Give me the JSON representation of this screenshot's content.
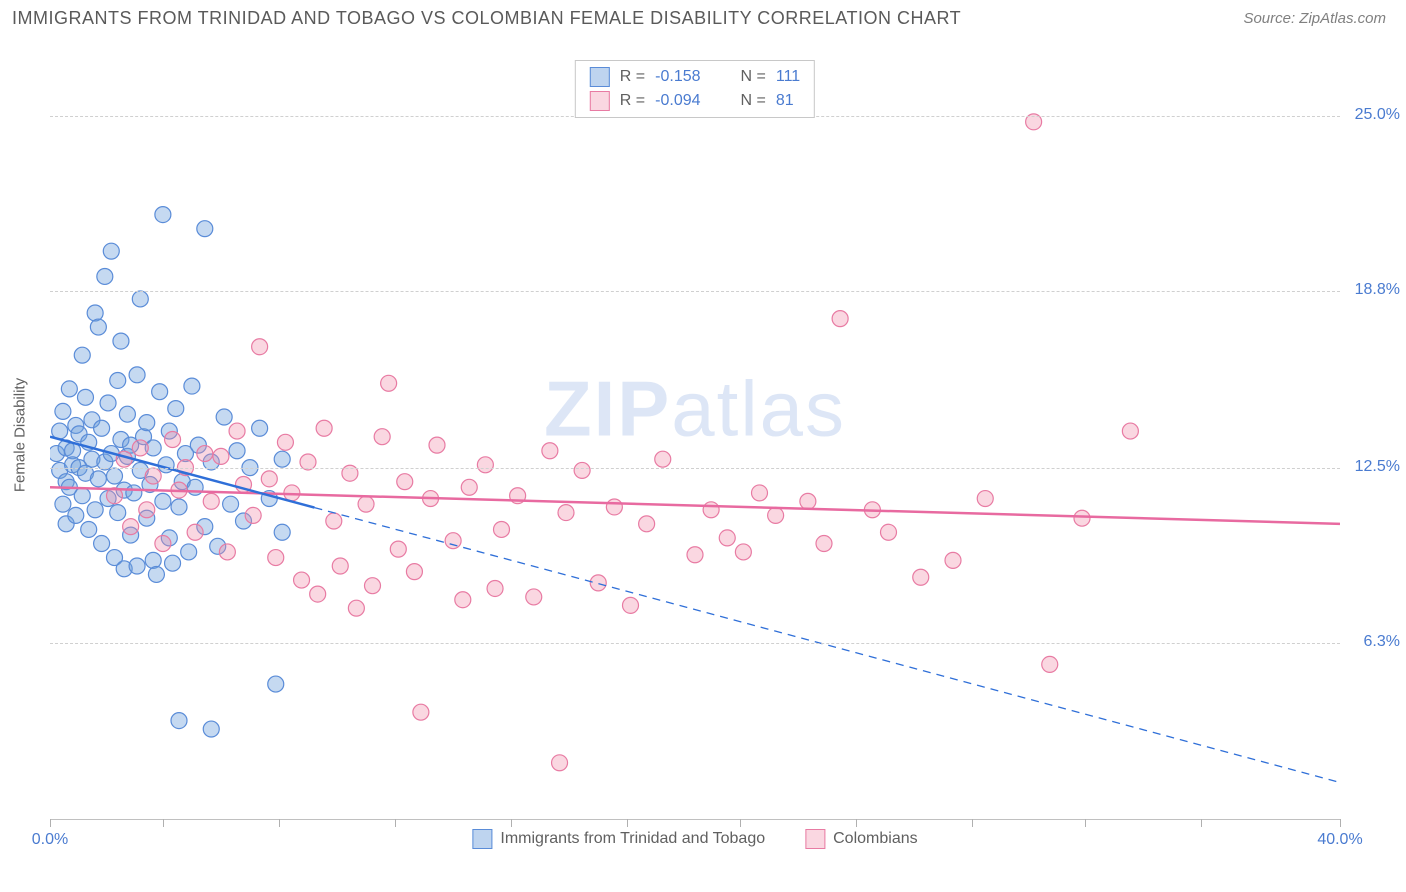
{
  "title": "IMMIGRANTS FROM TRINIDAD AND TOBAGO VS COLOMBIAN FEMALE DISABILITY CORRELATION CHART",
  "source": "Source: ZipAtlas.com",
  "y_axis_label": "Female Disability",
  "watermark_bold": "ZIP",
  "watermark_light": "atlas",
  "chart": {
    "type": "scatter",
    "xlim": [
      0,
      40
    ],
    "ylim": [
      0,
      27
    ],
    "y_ticks": [
      {
        "value": 6.3,
        "label": "6.3%"
      },
      {
        "value": 12.5,
        "label": "12.5%"
      },
      {
        "value": 18.8,
        "label": "18.8%"
      },
      {
        "value": 25.0,
        "label": "25.0%"
      }
    ],
    "x_ticks": [
      0,
      3.5,
      7.1,
      10.7,
      14.3,
      17.9,
      21.4,
      25,
      28.6,
      32.1,
      35.7,
      40
    ],
    "x_tick_labels": [
      {
        "value": 0,
        "label": "0.0%"
      },
      {
        "value": 40,
        "label": "40.0%"
      }
    ],
    "grid_color": "#d0d0d0",
    "background_color": "#ffffff",
    "series": [
      {
        "name": "Immigrants from Trinidad and Tobago",
        "R": "-0.158",
        "N": "111",
        "marker_fill": "rgba(110,160,220,0.40)",
        "marker_stroke": "#5a8cd8",
        "marker_radius": 8,
        "line_color": "#2f6fd8",
        "line_width": 2.5,
        "line_solid_end_x": 8.2,
        "line_start": {
          "x": 0,
          "y": 13.6
        },
        "line_end": {
          "x": 40,
          "y": 1.3
        },
        "points": [
          {
            "x": 0.2,
            "y": 13.0
          },
          {
            "x": 0.3,
            "y": 12.4
          },
          {
            "x": 0.3,
            "y": 13.8
          },
          {
            "x": 0.4,
            "y": 11.2
          },
          {
            "x": 0.4,
            "y": 14.5
          },
          {
            "x": 0.5,
            "y": 12.0
          },
          {
            "x": 0.5,
            "y": 13.2
          },
          {
            "x": 0.5,
            "y": 10.5
          },
          {
            "x": 0.6,
            "y": 11.8
          },
          {
            "x": 0.6,
            "y": 15.3
          },
          {
            "x": 0.7,
            "y": 13.1
          },
          {
            "x": 0.7,
            "y": 12.6
          },
          {
            "x": 0.8,
            "y": 14.0
          },
          {
            "x": 0.8,
            "y": 10.8
          },
          {
            "x": 0.9,
            "y": 12.5
          },
          {
            "x": 0.9,
            "y": 13.7
          },
          {
            "x": 1.0,
            "y": 11.5
          },
          {
            "x": 1.0,
            "y": 16.5
          },
          {
            "x": 1.1,
            "y": 12.3
          },
          {
            "x": 1.1,
            "y": 15.0
          },
          {
            "x": 1.2,
            "y": 13.4
          },
          {
            "x": 1.2,
            "y": 10.3
          },
          {
            "x": 1.3,
            "y": 12.8
          },
          {
            "x": 1.3,
            "y": 14.2
          },
          {
            "x": 1.4,
            "y": 11.0
          },
          {
            "x": 1.4,
            "y": 18.0
          },
          {
            "x": 1.5,
            "y": 12.1
          },
          {
            "x": 1.5,
            "y": 17.5
          },
          {
            "x": 1.6,
            "y": 13.9
          },
          {
            "x": 1.6,
            "y": 9.8
          },
          {
            "x": 1.7,
            "y": 12.7
          },
          {
            "x": 1.7,
            "y": 19.3
          },
          {
            "x": 1.8,
            "y": 11.4
          },
          {
            "x": 1.8,
            "y": 14.8
          },
          {
            "x": 1.9,
            "y": 13.0
          },
          {
            "x": 1.9,
            "y": 20.2
          },
          {
            "x": 2.0,
            "y": 12.2
          },
          {
            "x": 2.0,
            "y": 9.3
          },
          {
            "x": 2.1,
            "y": 15.6
          },
          {
            "x": 2.1,
            "y": 10.9
          },
          {
            "x": 2.2,
            "y": 13.5
          },
          {
            "x": 2.2,
            "y": 17.0
          },
          {
            "x": 2.3,
            "y": 11.7
          },
          {
            "x": 2.3,
            "y": 8.9
          },
          {
            "x": 2.4,
            "y": 12.9
          },
          {
            "x": 2.4,
            "y": 14.4
          },
          {
            "x": 2.5,
            "y": 10.1
          },
          {
            "x": 2.5,
            "y": 13.3
          },
          {
            "x": 2.6,
            "y": 11.6
          },
          {
            "x": 2.7,
            "y": 15.8
          },
          {
            "x": 2.7,
            "y": 9.0
          },
          {
            "x": 2.8,
            "y": 12.4
          },
          {
            "x": 2.8,
            "y": 18.5
          },
          {
            "x": 2.9,
            "y": 13.6
          },
          {
            "x": 3.0,
            "y": 10.7
          },
          {
            "x": 3.0,
            "y": 14.1
          },
          {
            "x": 3.1,
            "y": 11.9
          },
          {
            "x": 3.2,
            "y": 9.2
          },
          {
            "x": 3.2,
            "y": 13.2
          },
          {
            "x": 3.3,
            "y": 8.7
          },
          {
            "x": 3.4,
            "y": 15.2
          },
          {
            "x": 3.5,
            "y": 11.3
          },
          {
            "x": 3.5,
            "y": 21.5
          },
          {
            "x": 3.6,
            "y": 12.6
          },
          {
            "x": 3.7,
            "y": 10.0
          },
          {
            "x": 3.7,
            "y": 13.8
          },
          {
            "x": 3.8,
            "y": 9.1
          },
          {
            "x": 3.9,
            "y": 14.6
          },
          {
            "x": 4.0,
            "y": 11.1
          },
          {
            "x": 4.0,
            "y": 3.5
          },
          {
            "x": 4.1,
            "y": 12.0
          },
          {
            "x": 4.2,
            "y": 13.0
          },
          {
            "x": 4.3,
            "y": 9.5
          },
          {
            "x": 4.4,
            "y": 15.4
          },
          {
            "x": 4.5,
            "y": 11.8
          },
          {
            "x": 4.6,
            "y": 13.3
          },
          {
            "x": 4.8,
            "y": 10.4
          },
          {
            "x": 4.8,
            "y": 21.0
          },
          {
            "x": 5.0,
            "y": 12.7
          },
          {
            "x": 5.0,
            "y": 3.2
          },
          {
            "x": 5.2,
            "y": 9.7
          },
          {
            "x": 5.4,
            "y": 14.3
          },
          {
            "x": 5.6,
            "y": 11.2
          },
          {
            "x": 5.8,
            "y": 13.1
          },
          {
            "x": 6.0,
            "y": 10.6
          },
          {
            "x": 6.2,
            "y": 12.5
          },
          {
            "x": 6.5,
            "y": 13.9
          },
          {
            "x": 6.8,
            "y": 11.4
          },
          {
            "x": 7.0,
            "y": 4.8
          },
          {
            "x": 7.2,
            "y": 12.8
          },
          {
            "x": 7.2,
            "y": 10.2
          }
        ]
      },
      {
        "name": "Colombians",
        "R": "-0.094",
        "N": "81",
        "marker_fill": "rgba(240,140,170,0.35)",
        "marker_stroke": "#e87ba3",
        "marker_radius": 8,
        "line_color": "#e86aa0",
        "line_width": 2.5,
        "line_start": {
          "x": 0,
          "y": 11.8
        },
        "line_end": {
          "x": 40,
          "y": 10.5
        },
        "points": [
          {
            "x": 2.0,
            "y": 11.5
          },
          {
            "x": 2.3,
            "y": 12.8
          },
          {
            "x": 2.5,
            "y": 10.4
          },
          {
            "x": 2.8,
            "y": 13.2
          },
          {
            "x": 3.0,
            "y": 11.0
          },
          {
            "x": 3.2,
            "y": 12.2
          },
          {
            "x": 3.5,
            "y": 9.8
          },
          {
            "x": 3.8,
            "y": 13.5
          },
          {
            "x": 4.0,
            "y": 11.7
          },
          {
            "x": 4.2,
            "y": 12.5
          },
          {
            "x": 4.5,
            "y": 10.2
          },
          {
            "x": 4.8,
            "y": 13.0
          },
          {
            "x": 5.0,
            "y": 11.3
          },
          {
            "x": 5.3,
            "y": 12.9
          },
          {
            "x": 5.5,
            "y": 9.5
          },
          {
            "x": 5.8,
            "y": 13.8
          },
          {
            "x": 6.0,
            "y": 11.9
          },
          {
            "x": 6.3,
            "y": 10.8
          },
          {
            "x": 6.5,
            "y": 16.8
          },
          {
            "x": 6.8,
            "y": 12.1
          },
          {
            "x": 7.0,
            "y": 9.3
          },
          {
            "x": 7.3,
            "y": 13.4
          },
          {
            "x": 7.5,
            "y": 11.6
          },
          {
            "x": 7.8,
            "y": 8.5
          },
          {
            "x": 8.0,
            "y": 12.7
          },
          {
            "x": 8.3,
            "y": 8.0
          },
          {
            "x": 8.5,
            "y": 13.9
          },
          {
            "x": 8.8,
            "y": 10.6
          },
          {
            "x": 9.0,
            "y": 9.0
          },
          {
            "x": 9.3,
            "y": 12.3
          },
          {
            "x": 9.5,
            "y": 7.5
          },
          {
            "x": 9.8,
            "y": 11.2
          },
          {
            "x": 10.0,
            "y": 8.3
          },
          {
            "x": 10.3,
            "y": 13.6
          },
          {
            "x": 10.5,
            "y": 15.5
          },
          {
            "x": 10.8,
            "y": 9.6
          },
          {
            "x": 11.0,
            "y": 12.0
          },
          {
            "x": 11.3,
            "y": 8.8
          },
          {
            "x": 11.5,
            "y": 3.8
          },
          {
            "x": 11.8,
            "y": 11.4
          },
          {
            "x": 12.0,
            "y": 13.3
          },
          {
            "x": 12.5,
            "y": 9.9
          },
          {
            "x": 12.8,
            "y": 7.8
          },
          {
            "x": 13.0,
            "y": 11.8
          },
          {
            "x": 13.5,
            "y": 12.6
          },
          {
            "x": 13.8,
            "y": 8.2
          },
          {
            "x": 14.0,
            "y": 10.3
          },
          {
            "x": 14.5,
            "y": 11.5
          },
          {
            "x": 15.0,
            "y": 7.9
          },
          {
            "x": 15.5,
            "y": 13.1
          },
          {
            "x": 15.8,
            "y": 2.0
          },
          {
            "x": 16.0,
            "y": 10.9
          },
          {
            "x": 16.5,
            "y": 12.4
          },
          {
            "x": 17.0,
            "y": 8.4
          },
          {
            "x": 17.5,
            "y": 11.1
          },
          {
            "x": 18.0,
            "y": 7.6
          },
          {
            "x": 18.5,
            "y": 10.5
          },
          {
            "x": 19.0,
            "y": 12.8
          },
          {
            "x": 20.0,
            "y": 9.4
          },
          {
            "x": 20.5,
            "y": 11.0
          },
          {
            "x": 21.0,
            "y": 10.0
          },
          {
            "x": 21.5,
            "y": 9.5
          },
          {
            "x": 22.0,
            "y": 11.6
          },
          {
            "x": 22.5,
            "y": 10.8
          },
          {
            "x": 23.5,
            "y": 11.3
          },
          {
            "x": 24.0,
            "y": 9.8
          },
          {
            "x": 24.5,
            "y": 17.8
          },
          {
            "x": 25.5,
            "y": 11.0
          },
          {
            "x": 26.0,
            "y": 10.2
          },
          {
            "x": 27.0,
            "y": 8.6
          },
          {
            "x": 28.0,
            "y": 9.2
          },
          {
            "x": 29.0,
            "y": 11.4
          },
          {
            "x": 30.5,
            "y": 24.8
          },
          {
            "x": 31.0,
            "y": 5.5
          },
          {
            "x": 32.0,
            "y": 10.7
          },
          {
            "x": 33.5,
            "y": 13.8
          }
        ]
      }
    ]
  },
  "top_legend": {
    "row1": {
      "R_label": "R =",
      "R_value": "-0.158",
      "N_label": "N =",
      "N_value": "111"
    },
    "row2": {
      "R_label": "R =",
      "R_value": "-0.094",
      "N_label": "N =",
      "N_value": "81"
    }
  }
}
